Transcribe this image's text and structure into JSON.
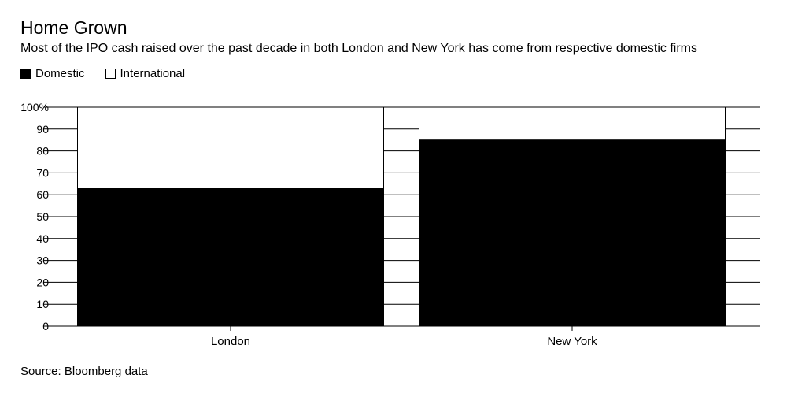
{
  "title": "Home Grown",
  "subtitle": "Most of the IPO cash raised over the past decade in both London and New York has come from respective domestic firms",
  "source": "Source: Bloomberg data",
  "legend": [
    {
      "label": "Domestic",
      "color": "#000000"
    },
    {
      "label": "International",
      "color": "#ffffff"
    }
  ],
  "chart_data": {
    "type": "bar",
    "stacked": true,
    "categories": [
      "London",
      "New York"
    ],
    "series": [
      {
        "name": "Domestic",
        "color": "#000000",
        "values": [
          63,
          85
        ]
      },
      {
        "name": "International",
        "color": "#ffffff",
        "values": [
          37,
          15
        ]
      }
    ],
    "ylim": [
      0,
      100
    ],
    "yticks": [
      0,
      10,
      20,
      30,
      40,
      50,
      60,
      70,
      80,
      90,
      100
    ],
    "ytick_labels": [
      "0",
      "10",
      "20",
      "30",
      "40",
      "50",
      "60",
      "70",
      "80",
      "90",
      "100%"
    ],
    "grid": true,
    "legend_position": "top-left"
  }
}
